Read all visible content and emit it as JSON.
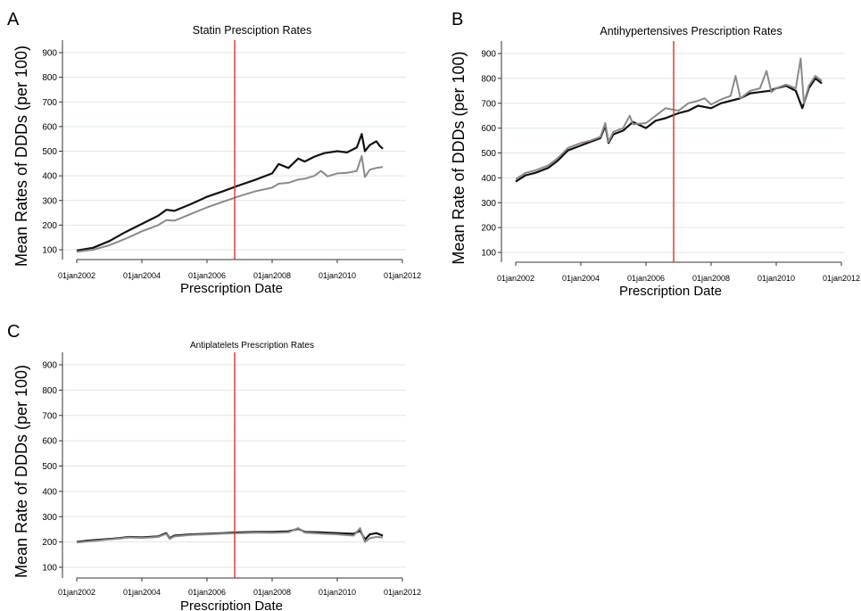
{
  "chart_data": [
    {
      "panel": "A",
      "type": "line",
      "title": "Statin Presciption Rates",
      "xlabel": "Prescription Date",
      "ylabel": "Mean Rates of DDDs (per 100)",
      "xticks": [
        "01jan2002",
        "01jan2004",
        "01jan2006",
        "01jan2008",
        "01jan2010",
        "01jan2012"
      ],
      "yticks": [
        "100",
        "200",
        "300",
        "400",
        "500",
        "600",
        "700",
        "800",
        "900"
      ],
      "ylim": [
        100,
        900
      ],
      "xlim": [
        2002.0,
        2012.0
      ],
      "vline": 2006.85,
      "grid": true,
      "series": [
        {
          "color": "#111111",
          "points": [
            [
              2002.0,
              97
            ],
            [
              2002.5,
              108
            ],
            [
              2003.0,
              135
            ],
            [
              2003.5,
              172
            ],
            [
              2004.0,
              205
            ],
            [
              2004.5,
              238
            ],
            [
              2004.75,
              262
            ],
            [
              2005.0,
              258
            ],
            [
              2005.5,
              285
            ],
            [
              2006.0,
              315
            ],
            [
              2006.5,
              338
            ],
            [
              2007.0,
              362
            ],
            [
              2007.5,
              385
            ],
            [
              2008.0,
              410
            ],
            [
              2008.2,
              448
            ],
            [
              2008.5,
              432
            ],
            [
              2008.8,
              470
            ],
            [
              2009.0,
              458
            ],
            [
              2009.3,
              478
            ],
            [
              2009.6,
              492
            ],
            [
              2010.0,
              500
            ],
            [
              2010.3,
              495
            ],
            [
              2010.6,
              515
            ],
            [
              2010.75,
              570
            ],
            [
              2010.85,
              500
            ],
            [
              2011.0,
              525
            ],
            [
              2011.2,
              540
            ],
            [
              2011.3,
              522
            ],
            [
              2011.4,
              510
            ]
          ]
        },
        {
          "color": "#8a8a8a",
          "points": [
            [
              2002.0,
              92
            ],
            [
              2002.5,
              100
            ],
            [
              2003.0,
              118
            ],
            [
              2003.5,
              145
            ],
            [
              2004.0,
              175
            ],
            [
              2004.5,
              200
            ],
            [
              2004.75,
              220
            ],
            [
              2005.0,
              218
            ],
            [
              2005.5,
              245
            ],
            [
              2006.0,
              272
            ],
            [
              2006.5,
              295
            ],
            [
              2007.0,
              318
            ],
            [
              2007.5,
              338
            ],
            [
              2008.0,
              352
            ],
            [
              2008.2,
              368
            ],
            [
              2008.5,
              372
            ],
            [
              2008.8,
              385
            ],
            [
              2009.0,
              388
            ],
            [
              2009.3,
              400
            ],
            [
              2009.5,
              420
            ],
            [
              2009.7,
              398
            ],
            [
              2010.0,
              410
            ],
            [
              2010.3,
              412
            ],
            [
              2010.6,
              420
            ],
            [
              2010.75,
              480
            ],
            [
              2010.85,
              395
            ],
            [
              2011.0,
              425
            ],
            [
              2011.2,
              432
            ],
            [
              2011.4,
              436
            ]
          ]
        }
      ]
    },
    {
      "panel": "B",
      "type": "line",
      "title": "Antihypertensives Prescription Rates",
      "xlabel": "Prescription Date",
      "ylabel": "Mean Rate of DDDs (per 100)",
      "xticks": [
        "01jan2002",
        "01jan2004",
        "01jan2006",
        "01jan2008",
        "01jan2010",
        "01jan2012"
      ],
      "yticks": [
        "100",
        "200",
        "300",
        "400",
        "500",
        "600",
        "700",
        "800",
        "900"
      ],
      "ylim": [
        100,
        900
      ],
      "xlim": [
        2002.0,
        2012.0
      ],
      "vline": 2006.85,
      "grid": true,
      "series": [
        {
          "color": "#111111",
          "points": [
            [
              2002.0,
              385
            ],
            [
              2002.3,
              410
            ],
            [
              2002.6,
              420
            ],
            [
              2003.0,
              440
            ],
            [
              2003.3,
              470
            ],
            [
              2003.6,
              510
            ],
            [
              2004.0,
              530
            ],
            [
              2004.3,
              545
            ],
            [
              2004.6,
              560
            ],
            [
              2004.75,
              610
            ],
            [
              2004.85,
              540
            ],
            [
              2005.0,
              575
            ],
            [
              2005.3,
              590
            ],
            [
              2005.6,
              625
            ],
            [
              2006.0,
              600
            ],
            [
              2006.3,
              630
            ],
            [
              2006.6,
              640
            ],
            [
              2007.0,
              660
            ],
            [
              2007.3,
              670
            ],
            [
              2007.6,
              690
            ],
            [
              2008.0,
              680
            ],
            [
              2008.3,
              700
            ],
            [
              2008.6,
              710
            ],
            [
              2008.9,
              720
            ],
            [
              2009.2,
              740
            ],
            [
              2009.5,
              745
            ],
            [
              2009.8,
              750
            ],
            [
              2010.0,
              760
            ],
            [
              2010.3,
              770
            ],
            [
              2010.6,
              750
            ],
            [
              2010.8,
              680
            ],
            [
              2011.0,
              760
            ],
            [
              2011.2,
              800
            ],
            [
              2011.4,
              780
            ]
          ]
        },
        {
          "color": "#8a8a8a",
          "points": [
            [
              2002.0,
              395
            ],
            [
              2002.3,
              420
            ],
            [
              2002.6,
              430
            ],
            [
              2003.0,
              450
            ],
            [
              2003.3,
              480
            ],
            [
              2003.6,
              520
            ],
            [
              2004.0,
              540
            ],
            [
              2004.3,
              550
            ],
            [
              2004.6,
              565
            ],
            [
              2004.75,
              620
            ],
            [
              2004.85,
              545
            ],
            [
              2005.0,
              585
            ],
            [
              2005.3,
              600
            ],
            [
              2005.5,
              650
            ],
            [
              2005.6,
              615
            ],
            [
              2006.0,
              620
            ],
            [
              2006.3,
              650
            ],
            [
              2006.6,
              680
            ],
            [
              2007.0,
              670
            ],
            [
              2007.3,
              700
            ],
            [
              2007.6,
              710
            ],
            [
              2007.8,
              720
            ],
            [
              2008.0,
              695
            ],
            [
              2008.3,
              715
            ],
            [
              2008.6,
              730
            ],
            [
              2008.75,
              810
            ],
            [
              2008.9,
              720
            ],
            [
              2009.2,
              750
            ],
            [
              2009.5,
              760
            ],
            [
              2009.7,
              830
            ],
            [
              2009.85,
              745
            ],
            [
              2010.0,
              760
            ],
            [
              2010.3,
              775
            ],
            [
              2010.6,
              760
            ],
            [
              2010.75,
              880
            ],
            [
              2010.85,
              700
            ],
            [
              2011.0,
              770
            ],
            [
              2011.2,
              810
            ],
            [
              2011.4,
              790
            ]
          ]
        }
      ]
    },
    {
      "panel": "C",
      "type": "line",
      "title": "Antiplatelets Prescription Rates",
      "xlabel": "Prescription Date",
      "ylabel": "Mean Rate of DDDs (per 100)",
      "xticks": [
        "01jan2002",
        "01jan2004",
        "01jan2006",
        "01jan2008",
        "01jan2010",
        "01jan2012"
      ],
      "yticks": [
        "100",
        "200",
        "300",
        "400",
        "500",
        "600",
        "700",
        "800",
        "900"
      ],
      "ylim": [
        100,
        900
      ],
      "xlim": [
        2002.0,
        2012.0
      ],
      "vline": 2006.85,
      "grid": true,
      "series": [
        {
          "color": "#111111",
          "points": [
            [
              2002.0,
              200
            ],
            [
              2002.3,
              205
            ],
            [
              2002.6,
              208
            ],
            [
              2003.0,
              212
            ],
            [
              2003.3,
              215
            ],
            [
              2003.6,
              220
            ],
            [
              2004.0,
              218
            ],
            [
              2004.5,
              222
            ],
            [
              2004.75,
              235
            ],
            [
              2004.85,
              215
            ],
            [
              2005.0,
              225
            ],
            [
              2005.5,
              230
            ],
            [
              2006.0,
              232
            ],
            [
              2006.5,
              235
            ],
            [
              2007.0,
              238
            ],
            [
              2007.5,
              240
            ],
            [
              2008.0,
              240
            ],
            [
              2008.5,
              242
            ],
            [
              2008.8,
              252
            ],
            [
              2009.0,
              240
            ],
            [
              2009.5,
              238
            ],
            [
              2010.0,
              235
            ],
            [
              2010.5,
              232
            ],
            [
              2010.7,
              245
            ],
            [
              2010.85,
              210
            ],
            [
              2011.0,
              230
            ],
            [
              2011.2,
              235
            ],
            [
              2011.4,
              225
            ]
          ]
        },
        {
          "color": "#8a8a8a",
          "points": [
            [
              2002.0,
              198
            ],
            [
              2002.3,
              202
            ],
            [
              2002.6,
              205
            ],
            [
              2003.0,
              210
            ],
            [
              2003.3,
              213
            ],
            [
              2003.6,
              218
            ],
            [
              2004.0,
              216
            ],
            [
              2004.5,
              220
            ],
            [
              2004.75,
              232
            ],
            [
              2004.85,
              212
            ],
            [
              2005.0,
              222
            ],
            [
              2005.5,
              228
            ],
            [
              2006.0,
              230
            ],
            [
              2006.5,
              233
            ],
            [
              2007.0,
              235
            ],
            [
              2007.5,
              237
            ],
            [
              2008.0,
              236
            ],
            [
              2008.5,
              238
            ],
            [
              2008.8,
              255
            ],
            [
              2009.0,
              237
            ],
            [
              2009.5,
              233
            ],
            [
              2010.0,
              230
            ],
            [
              2010.5,
              225
            ],
            [
              2010.7,
              255
            ],
            [
              2010.85,
              200
            ],
            [
              2011.0,
              215
            ],
            [
              2011.2,
              220
            ],
            [
              2011.4,
              218
            ]
          ]
        }
      ]
    }
  ],
  "panel_letters": [
    "A",
    "B",
    "C"
  ]
}
